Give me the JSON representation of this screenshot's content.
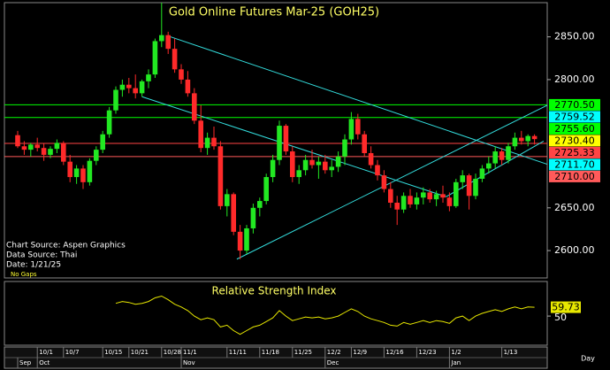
{
  "chart_data": {
    "type": "candlestick",
    "title": "Gold Online Futures Mar-25 (GOH25)",
    "notes": [
      "Chart Source: Aspen Graphics",
      "Data Source: Thai",
      "Date:   1/21/25"
    ],
    "gap_note": "No Gaps",
    "x_label": "Day",
    "categories": [
      null,
      null,
      null,
      "10/1",
      null,
      null,
      null,
      "10/7",
      null,
      null,
      null,
      null,
      null,
      "10/15",
      null,
      null,
      null,
      "10/21",
      null,
      null,
      null,
      null,
      "10/28",
      null,
      null,
      "11/1",
      null,
      null,
      null,
      null,
      null,
      null,
      "11/11",
      null,
      null,
      null,
      null,
      "11/18",
      null,
      null,
      null,
      null,
      "11/25",
      null,
      null,
      null,
      null,
      "12/2",
      null,
      null,
      null,
      "12/9",
      null,
      null,
      null,
      null,
      "12/16",
      null,
      null,
      null,
      null,
      "12/23",
      null,
      null,
      null,
      null,
      "1/2",
      null,
      null,
      null,
      null,
      null,
      null,
      null,
      "1/13",
      null,
      null,
      null,
      null,
      null
    ],
    "months": [
      "Sep",
      null,
      null,
      "Oct",
      null,
      null,
      null,
      null,
      null,
      null,
      null,
      null,
      null,
      null,
      null,
      null,
      null,
      null,
      null,
      null,
      null,
      null,
      null,
      null,
      null,
      "Nov",
      null,
      null,
      null,
      null,
      null,
      null,
      null,
      null,
      null,
      null,
      null,
      null,
      null,
      null,
      null,
      null,
      null,
      null,
      null,
      null,
      null,
      "Dec",
      null,
      null,
      null,
      null,
      null,
      null,
      null,
      null,
      null,
      null,
      null,
      null,
      null,
      null,
      null,
      null,
      null,
      null,
      "Jan",
      null,
      null,
      null,
      null,
      null,
      null,
      null,
      null,
      null,
      null,
      null,
      null,
      null
    ],
    "open": [
      2735,
      2722,
      2718,
      2724,
      2720,
      2712,
      2719,
      2726,
      2704,
      2686,
      2696,
      2680,
      2705,
      2718,
      2736,
      2764,
      2788,
      2794,
      2790,
      2784,
      2798,
      2806,
      2845,
      2852,
      2836,
      2812,
      2800,
      2784,
      2752,
      2720,
      2732,
      2722,
      2652,
      2666,
      2622,
      2600,
      2626,
      2650,
      2658,
      2686,
      2706,
      2746,
      2716,
      2686,
      2694,
      2706,
      2700,
      2704,
      2694,
      2698,
      2710,
      2730,
      2754,
      2736,
      2714,
      2700,
      2688,
      2672,
      2656,
      2648,
      2664,
      2654,
      2662,
      2668,
      2660,
      2666,
      2662,
      2652,
      2680,
      2688,
      2664,
      2684,
      2696,
      2702,
      2716,
      2706,
      2722,
      2732,
      2728,
      2734
    ],
    "high": [
      2740,
      2728,
      2726,
      2732,
      2725,
      2722,
      2730,
      2728,
      2712,
      2700,
      2700,
      2708,
      2722,
      2740,
      2768,
      2792,
      2800,
      2802,
      2806,
      2800,
      2812,
      2848,
      2890,
      2856,
      2848,
      2818,
      2810,
      2790,
      2770,
      2738,
      2745,
      2728,
      2672,
      2668,
      2630,
      2630,
      2655,
      2662,
      2690,
      2712,
      2752,
      2748,
      2722,
      2700,
      2712,
      2718,
      2710,
      2712,
      2706,
      2716,
      2736,
      2762,
      2760,
      2740,
      2722,
      2706,
      2694,
      2680,
      2664,
      2668,
      2672,
      2668,
      2674,
      2672,
      2670,
      2676,
      2668,
      2684,
      2694,
      2690,
      2690,
      2700,
      2710,
      2722,
      2720,
      2726,
      2738,
      2740,
      2736,
      2736
    ],
    "low": [
      2720,
      2712,
      2710,
      2716,
      2705,
      2708,
      2714,
      2700,
      2680,
      2678,
      2672,
      2676,
      2700,
      2714,
      2732,
      2760,
      2780,
      2784,
      2778,
      2780,
      2790,
      2802,
      2838,
      2830,
      2808,
      2795,
      2780,
      2748,
      2715,
      2712,
      2718,
      2648,
      2640,
      2618,
      2590,
      2596,
      2620,
      2640,
      2654,
      2680,
      2700,
      2712,
      2680,
      2678,
      2688,
      2696,
      2684,
      2690,
      2686,
      2692,
      2700,
      2724,
      2730,
      2710,
      2696,
      2682,
      2668,
      2650,
      2630,
      2644,
      2650,
      2648,
      2654,
      2656,
      2652,
      2656,
      2646,
      2650,
      2672,
      2648,
      2660,
      2680,
      2690,
      2696,
      2700,
      2702,
      2718,
      2724,
      2722,
      2724
    ],
    "close": [
      2722,
      2718,
      2724,
      2720,
      2712,
      2719,
      2726,
      2704,
      2686,
      2696,
      2680,
      2705,
      2718,
      2736,
      2764,
      2788,
      2794,
      2790,
      2784,
      2798,
      2806,
      2845,
      2852,
      2836,
      2812,
      2800,
      2784,
      2752,
      2720,
      2732,
      2722,
      2652,
      2666,
      2622,
      2600,
      2626,
      2650,
      2658,
      2686,
      2706,
      2746,
      2716,
      2686,
      2694,
      2706,
      2700,
      2704,
      2694,
      2698,
      2710,
      2730,
      2754,
      2736,
      2714,
      2700,
      2688,
      2672,
      2656,
      2648,
      2664,
      2654,
      2662,
      2668,
      2660,
      2666,
      2662,
      2652,
      2680,
      2688,
      2664,
      2684,
      2696,
      2702,
      2716,
      2706,
      2722,
      2732,
      2728,
      2734,
      2730.4
    ],
    "up_color": "#22e822",
    "down_color": "#ff2a2a",
    "ylim": [
      2568,
      2890
    ],
    "yticks": [
      {
        "value": 2600,
        "label": "2600.00"
      },
      {
        "value": 2650,
        "label": "2650.00"
      },
      {
        "value": 2800,
        "label": "2800.00"
      },
      {
        "value": 2850,
        "label": "2850.00"
      }
    ],
    "levels": [
      {
        "value": 2770.5,
        "label": "2770.50",
        "color": "#00ff00",
        "line": true
      },
      {
        "value": 2759.52,
        "label": "2759.52",
        "color": "#00ffff",
        "line": false
      },
      {
        "value": 2755.6,
        "label": "2755.60",
        "color": "#00ff00",
        "line": true
      },
      {
        "value": 2730.4,
        "label": "2730.40",
        "color": "#ffff00",
        "line": false
      },
      {
        "value": 2725.33,
        "label": "2725.33",
        "color": "#ff4444",
        "line": true
      },
      {
        "value": 2711.7,
        "label": "2711.70",
        "color": "#00ffff",
        "line": false
      },
      {
        "value": 2710,
        "label": "2710.00",
        "color": "#ff5a5a",
        "line": true
      }
    ],
    "trendlines": [
      {
        "x": [
          23,
          81
        ],
        "y": [
          2851,
          2701
        ],
        "color": "#33dddd"
      },
      {
        "x": [
          19,
          65.5
        ],
        "y": [
          2780,
          2663
        ],
        "color": "#33dddd"
      },
      {
        "x": [
          33.5,
          81
        ],
        "y": [
          2590,
          2770
        ],
        "color": "#33dddd"
      },
      {
        "x": [
          65.5,
          80.4
        ],
        "y": [
          2663,
          2728
        ],
        "color": "#33dddd"
      }
    ],
    "rsi": {
      "title": "Relative Strength Index",
      "color": "#e8e800",
      "values": [
        null,
        null,
        null,
        null,
        null,
        null,
        null,
        null,
        null,
        null,
        null,
        null,
        null,
        null,
        null,
        64,
        66,
        65,
        63,
        64,
        66,
        70,
        72,
        68,
        63,
        60,
        56,
        50,
        46,
        48,
        46,
        38,
        40,
        34,
        30,
        34,
        38,
        40,
        44,
        48,
        56,
        50,
        45,
        47,
        49,
        48,
        49,
        47,
        48,
        50,
        54,
        58,
        55,
        50,
        47,
        45,
        43,
        40,
        39,
        43,
        41,
        43,
        45,
        43,
        45,
        44,
        42,
        48,
        50,
        45,
        50,
        53,
        55,
        57,
        55,
        58,
        60,
        58,
        60,
        59.73
      ],
      "last_label": "59.73",
      "ylim": [
        18,
        88
      ],
      "yticks": [
        50
      ]
    }
  }
}
